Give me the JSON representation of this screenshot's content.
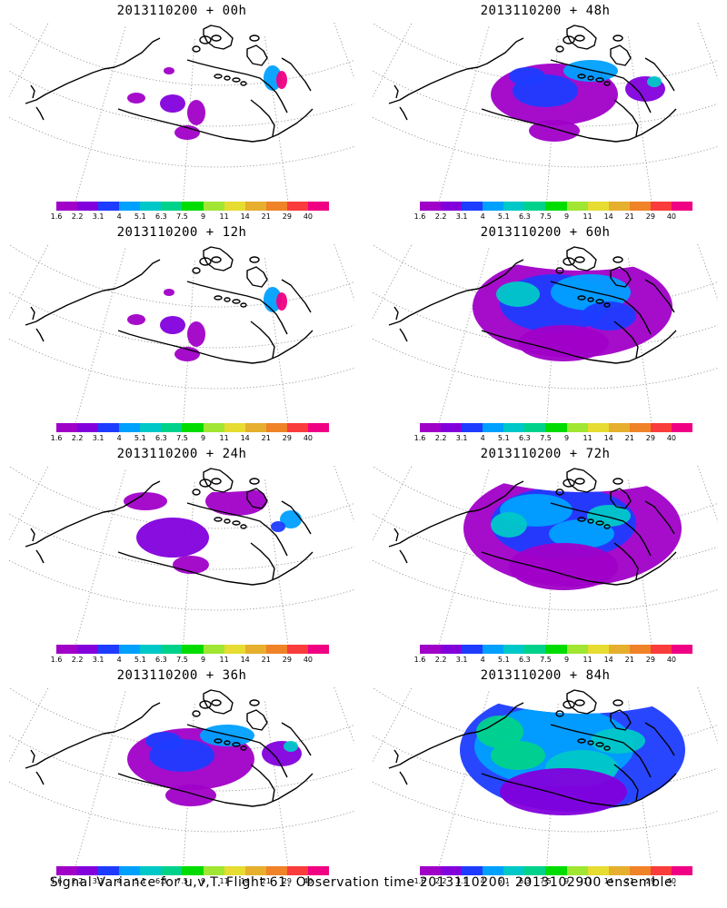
{
  "panels": [
    {
      "title": "2013110200 + 00h",
      "lead": "00h",
      "coverage": "low"
    },
    {
      "title": "2013110200 + 48h",
      "lead": "48h",
      "coverage": "medium"
    },
    {
      "title": "2013110200 + 12h",
      "lead": "12h",
      "coverage": "low"
    },
    {
      "title": "2013110200 + 60h",
      "lead": "60h",
      "coverage": "medium-high"
    },
    {
      "title": "2013110200 + 24h",
      "lead": "24h",
      "coverage": "low-medium"
    },
    {
      "title": "2013110200 + 72h",
      "lead": "72h",
      "coverage": "high"
    },
    {
      "title": "2013110200 + 36h",
      "lead": "36h",
      "coverage": "medium"
    },
    {
      "title": "2013110200 + 84h",
      "lead": "84h",
      "coverage": "highest"
    }
  ],
  "colorbar": {
    "labels": [
      "1.6",
      "2.2",
      "3.1",
      "4",
      "5.1",
      "6.3",
      "7.5",
      "9",
      "11",
      "14",
      "21",
      "29",
      "40"
    ],
    "colors": [
      "#a000c8",
      "#8200dc",
      "#1e3cff",
      "#00a0ff",
      "#00c8c8",
      "#00d28c",
      "#00dc00",
      "#a0e632",
      "#e6dc32",
      "#e6af2d",
      "#f08228",
      "#fa3c3c",
      "#f00082"
    ]
  },
  "footer": "Signal Variance for u,v,T. Flight 61. Observation time 2013110200. 2013102900 ensemble.",
  "map": {
    "projection": "polar stereographic sector",
    "grid": "dotted",
    "background": "#ffffff",
    "coastline_color": "#000000"
  }
}
